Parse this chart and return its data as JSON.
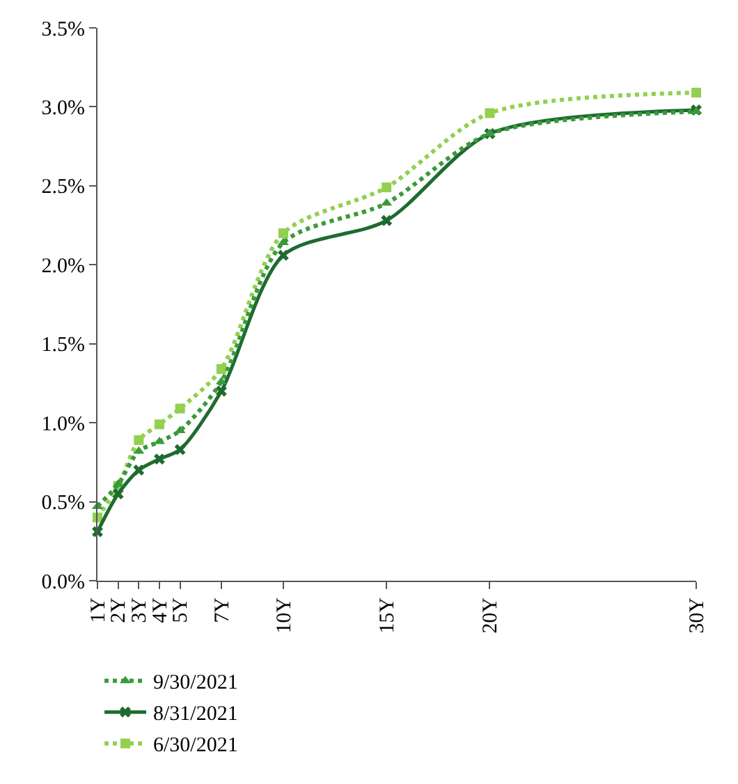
{
  "chart_data": {
    "type": "line",
    "x": [
      1,
      2,
      3,
      4,
      5,
      7,
      10,
      15,
      20,
      30
    ],
    "series": [
      {
        "name": "9/30/2021",
        "color": "#3a9a3a",
        "line_style": "dotted",
        "marker": "triangle",
        "values": [
          0.47,
          0.61,
          0.82,
          0.88,
          0.95,
          1.26,
          2.14,
          2.39,
          2.83,
          2.97
        ]
      },
      {
        "name": "8/31/2021",
        "color": "#1e6b30",
        "line_style": "solid",
        "marker": "cross",
        "values": [
          0.31,
          0.55,
          0.7,
          0.77,
          0.83,
          1.2,
          2.06,
          2.28,
          2.83,
          2.98
        ]
      },
      {
        "name": "6/30/2021",
        "color": "#92d050",
        "line_style": "dotted",
        "marker": "square",
        "values": [
          0.4,
          0.6,
          0.89,
          0.99,
          1.09,
          1.34,
          2.2,
          2.49,
          2.96,
          3.09
        ]
      }
    ],
    "xlim": [
      1,
      30
    ],
    "xticks": [
      {
        "value": 1,
        "label": "1Y"
      },
      {
        "value": 2,
        "label": "2Y"
      },
      {
        "value": 3,
        "label": "3Y"
      },
      {
        "value": 4,
        "label": "4Y"
      },
      {
        "value": 5,
        "label": "5Y"
      },
      {
        "value": 7,
        "label": "7Y"
      },
      {
        "value": 10,
        "label": "10Y"
      },
      {
        "value": 15,
        "label": "15Y"
      },
      {
        "value": 20,
        "label": "20Y"
      },
      {
        "value": 30,
        "label": "30Y"
      }
    ],
    "ylim": [
      0,
      3.5
    ],
    "yticks": [
      {
        "value": 0,
        "label": "0.0%"
      },
      {
        "value": 0.5,
        "label": "0.5%"
      },
      {
        "value": 1,
        "label": "1.0%"
      },
      {
        "value": 1.5,
        "label": "1.5%"
      },
      {
        "value": 2,
        "label": "2.0%"
      },
      {
        "value": 2.5,
        "label": "2.5%"
      },
      {
        "value": 3,
        "label": "3.0%"
      },
      {
        "value": 3.5,
        "label": "3.5%"
      }
    ],
    "grid": false,
    "legend": "bottom"
  }
}
